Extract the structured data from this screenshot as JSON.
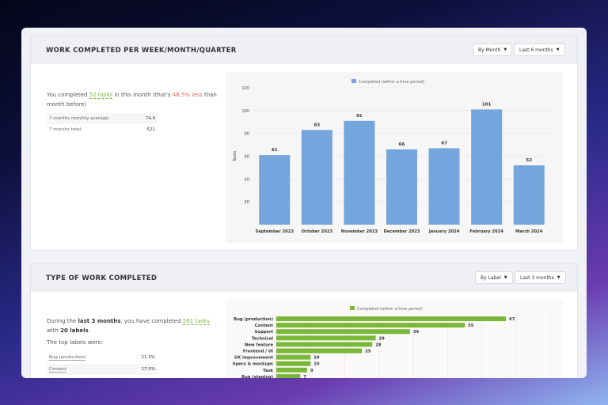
{
  "panel1": {
    "title": "WORK COMPLETED PER WEEK/MONTH/QUARTER",
    "group_by": "By Month",
    "period": "Last 6 months",
    "summary": {
      "pre": "You completed ",
      "tasks": "52 tasks",
      "mid": " in this month (that's ",
      "change": "48.5% less",
      "post": " than month before)"
    },
    "stats": [
      {
        "label": "7 months monthly average:",
        "value": "74.4"
      },
      {
        "label": "7 months total:",
        "value": "521"
      }
    ]
  },
  "panel2": {
    "title": "TYPE OF WORK COMPLETED",
    "group_by": "By Label",
    "period": "Last 3 months",
    "summary": {
      "pre": "During the ",
      "period": "last 3 months",
      "mid": ", you have completed ",
      "tasks": "261 tasks",
      "mid2": " with ",
      "labels": "20 labels",
      "post": "."
    },
    "top_labels_heading": "The top labels were:",
    "top_labels": [
      {
        "label": "Bug (production)",
        "value": "21.3%"
      },
      {
        "label": "Content",
        "value": "17.5%"
      }
    ]
  },
  "chart_data": [
    {
      "type": "bar",
      "legend": "Completed (within a time period)",
      "ylabel": "Tasks",
      "ylim": [
        0,
        120
      ],
      "yticks": [
        20,
        40,
        60,
        80,
        100,
        120
      ],
      "color": "#74a5dc",
      "categories": [
        "September 2023",
        "October 2023",
        "November 2023",
        "December 2023",
        "January 2024",
        "February 2024",
        "March 2024"
      ],
      "values": [
        61,
        83,
        91,
        66,
        67,
        101,
        52
      ],
      "legend_position": "top",
      "grid": true
    },
    {
      "type": "bar",
      "orientation": "horizontal",
      "legend": "Completed (within a time period)",
      "color": "#7ab83a",
      "legend_position": "top",
      "grid": true,
      "categories": [
        "Bug (production)",
        "Content",
        "Support",
        "Technical",
        "New feature",
        "Frontend / UI",
        "UX improvement",
        "Specs & mockups",
        "Task",
        "Bug (staging)"
      ],
      "values": [
        67,
        55,
        39,
        29,
        28,
        25,
        10,
        10,
        9,
        7
      ]
    }
  ]
}
